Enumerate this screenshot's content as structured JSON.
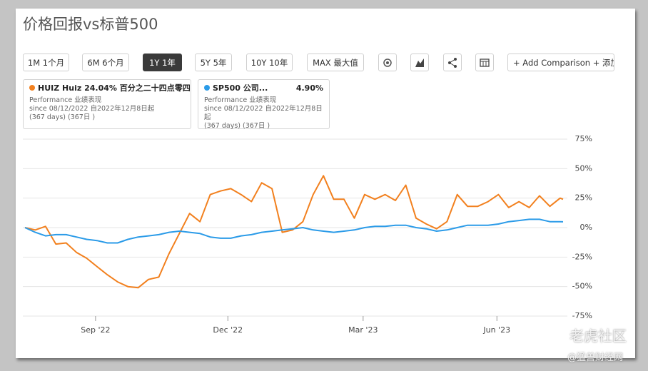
{
  "page_title": "价格回报vs标普500",
  "buttons": [
    "1M 1个月",
    "6M 6个月",
    "1Y 1年",
    "5Y 5年",
    "10Y 10年",
    "MAX 最大值"
  ],
  "active_button": 2,
  "comparison_button": "+ Add Comparison + 添加比较",
  "legend_cards": [
    {
      "change": "24.04%",
      "change_text": "百分之二十四点零四",
      "caption": "Performance 业绩表现",
      "since": "since 08/12/2022 自2022年12月8日起",
      "days": "(367 days) (367日 )"
    },
    {
      "change": "4.90%",
      "caption": "Performance 业绩表现",
      "since": "since 08/12/2022 自2022年12月8日起",
      "days": "(367 days) (367日 )"
    }
  ],
  "watermarks": [
    "老虎社区",
    "@猛兽财经网"
  ],
  "chart_data": {
    "type": "line",
    "x": [
      0,
      7,
      14,
      21,
      28,
      35,
      42,
      49,
      56,
      63,
      70,
      77,
      84,
      91,
      98,
      105,
      112,
      119,
      126,
      133,
      140,
      147,
      154,
      161,
      168,
      175,
      182,
      189,
      196,
      203,
      210,
      217,
      224,
      231,
      238,
      245,
      252,
      259,
      266,
      273,
      280,
      287,
      294,
      301,
      308,
      315,
      322,
      329,
      336,
      343,
      350,
      357,
      364,
      366
    ],
    "series": [
      {
        "name": "HUIZ Huiz",
        "color": "#f2801e",
        "values": [
          0,
          -2,
          1,
          -14,
          -13,
          -21,
          -26,
          -33,
          -40,
          -46,
          -50,
          -51,
          -44,
          -42,
          -22,
          -5,
          12,
          5,
          28,
          31,
          33,
          28,
          22,
          38,
          33,
          -4,
          -2,
          5,
          28,
          44,
          24,
          24,
          8,
          28,
          24,
          28,
          23,
          36,
          8,
          3,
          -1,
          5,
          28,
          18,
          18,
          22,
          28,
          17,
          22,
          17,
          27,
          18,
          25,
          24.04
        ]
      },
      {
        "name": "SP500 公司...",
        "color": "#2b9be8",
        "values": [
          0,
          -4,
          -7,
          -6,
          -6,
          -8,
          -10,
          -11,
          -13,
          -13,
          -10,
          -8,
          -7,
          -6,
          -4,
          -3,
          -4,
          -5,
          -8,
          -9,
          -9,
          -7,
          -6,
          -4,
          -3,
          -2,
          -1,
          0,
          -2,
          -3,
          -4,
          -3,
          -2,
          0,
          1,
          1,
          2,
          2,
          0,
          -1,
          -3,
          -2,
          0,
          2,
          2,
          2,
          3,
          5,
          6,
          7,
          7,
          5,
          5,
          4.9
        ]
      }
    ],
    "xlim": [
      0,
      366
    ],
    "xticks": [
      {
        "value": 48,
        "label": "Sep '22"
      },
      {
        "value": 138,
        "label": "Dec '22"
      },
      {
        "value": 230,
        "label": "Mar '23"
      },
      {
        "value": 321,
        "label": "Jun '23"
      }
    ],
    "ylim": [
      -75,
      75
    ],
    "yticks": [
      {
        "value": 75,
        "label": "75%"
      },
      {
        "value": 50,
        "label": "50%"
      },
      {
        "value": 25,
        "label": "25%"
      },
      {
        "value": 0,
        "label": "0%"
      },
      {
        "value": -25,
        "label": "-25%"
      },
      {
        "value": -50,
        "label": "-50%"
      },
      {
        "value": -75,
        "label": "-75%"
      }
    ],
    "grid": true
  }
}
